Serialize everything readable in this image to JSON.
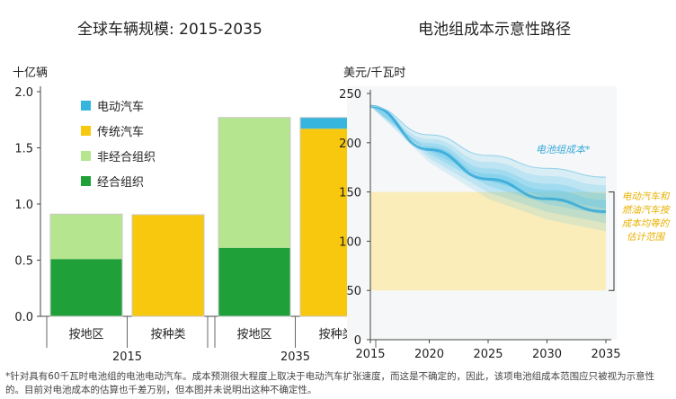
{
  "colors": {
    "ev": "#36b6de",
    "ice": "#f7c80d",
    "non_oecd": "#b6e58f",
    "oecd": "#20a039",
    "cost_band": "#5bc4e8",
    "parity_band": "#fbe9a6",
    "ev_cost_label": "#36a8d8",
    "parity_label": "#e8b100"
  },
  "chart_data": [
    {
      "type": "bar",
      "title": "全球车辆规模: 2015-2035",
      "ylabel": "十亿辆",
      "ylim": [
        0,
        2.0
      ],
      "yticks": [
        "0.0",
        "0.5",
        "1.0",
        "1.5",
        "2.0"
      ],
      "groups": [
        {
          "year": "2015",
          "bars": [
            {
              "label": "按地区",
              "segments": [
                {
                  "series": "经合组织",
                  "value": 0.51
                },
                {
                  "series": "非经合组织",
                  "value": 0.4
                }
              ]
            },
            {
              "label": "按种类",
              "segments": [
                {
                  "series": "传统汽车",
                  "value": 0.905
                },
                {
                  "series": "电动汽车",
                  "value": 0.0
                }
              ]
            }
          ]
        },
        {
          "year": "2035",
          "bars": [
            {
              "label": "按地区",
              "segments": [
                {
                  "series": "经合组织",
                  "value": 0.61
                },
                {
                  "series": "非经合组织",
                  "value": 1.16
                }
              ]
            },
            {
              "label": "按种类",
              "segments": [
                {
                  "series": "传统汽车",
                  "value": 1.67
                },
                {
                  "series": "电动汽车",
                  "value": 0.1
                }
              ]
            }
          ]
        }
      ],
      "legend": [
        {
          "name": "电动汽车",
          "color_key": "ev"
        },
        {
          "name": "传统汽车",
          "color_key": "ice"
        },
        {
          "name": "非经合组织",
          "color_key": "non_oecd"
        },
        {
          "name": "经合组织",
          "color_key": "oecd"
        }
      ],
      "legend_position": "top-left"
    },
    {
      "type": "area",
      "title": "电池组成本示意性路径",
      "ylabel": "美元/千瓦时",
      "xlim": [
        2015,
        2035
      ],
      "ylim": [
        0,
        250
      ],
      "xticks": [
        "2015",
        "2020",
        "2025",
        "2030",
        "2035"
      ],
      "yticks": [
        "0",
        "50",
        "100",
        "150",
        "200",
        "250"
      ],
      "cost_path": {
        "label": "电池组成本*",
        "x": [
          2015,
          2020,
          2025,
          2030,
          2035
        ],
        "upper": [
          237,
          208,
          187,
          174,
          165
        ],
        "central": [
          237,
          193,
          163,
          143,
          130
        ],
        "lower": [
          237,
          180,
          143,
          122,
          110
        ]
      },
      "parity_band": {
        "label": "电动汽车和燃油汽车按成本均等的估计范围",
        "range": [
          50,
          150
        ]
      }
    }
  ],
  "footnote": "*针对具有60千瓦时电池组的电池电动汽车。成本预测很大程度上取决于电动汽车扩张速度，而这是不确定的，因此，该项电池组成本范围应只被视为示意性的。目前对电池成本的估算也千差万别，但本图并未说明出这种不确定性。"
}
